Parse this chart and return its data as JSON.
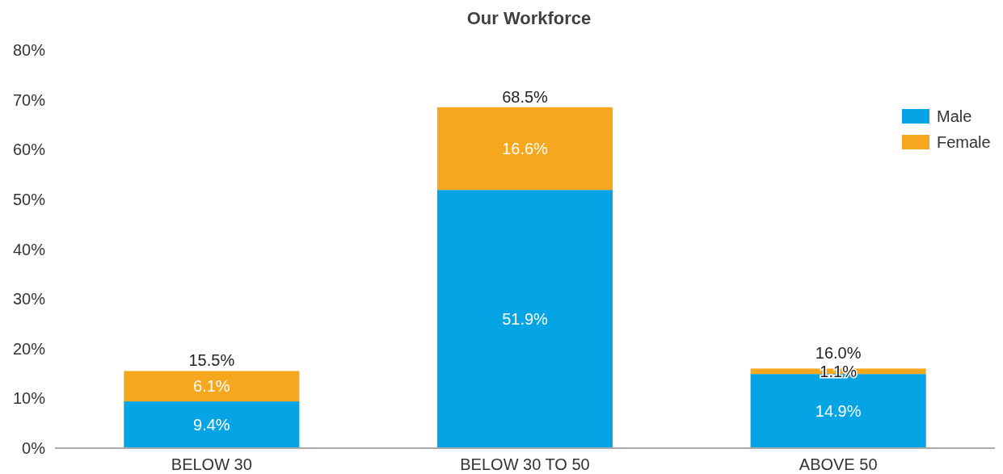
{
  "chart_data": {
    "type": "bar",
    "title": "Our Workforce",
    "categories": [
      "BELOW 30",
      "BELOW 30 TO 50",
      "ABOVE 50"
    ],
    "stacked": true,
    "series": [
      {
        "name": "Male",
        "color": "#05a5e5",
        "values": [
          9.4,
          51.9,
          14.9
        ],
        "value_labels": [
          "9.4%",
          "51.9%",
          "14.9%"
        ]
      },
      {
        "name": "Female",
        "color": "#f7a71e",
        "values": [
          6.1,
          16.6,
          1.1
        ],
        "value_labels": [
          "6.1%",
          "16.6%",
          "1.1%"
        ]
      }
    ],
    "totals": [
      "15.5%",
      "68.5%",
      "16.0%"
    ],
    "ylim": [
      0,
      80
    ],
    "yticks": [
      {
        "value": 0,
        "label": "0%"
      },
      {
        "value": 10,
        "label": "10%"
      },
      {
        "value": 20,
        "label": "20%"
      },
      {
        "value": 30,
        "label": "30%"
      },
      {
        "value": 40,
        "label": "40%"
      },
      {
        "value": 50,
        "label": "50%"
      },
      {
        "value": 60,
        "label": "60%"
      },
      {
        "value": 70,
        "label": "70%"
      },
      {
        "value": 80,
        "label": "80%"
      }
    ],
    "grid": false,
    "legend": "top right"
  }
}
